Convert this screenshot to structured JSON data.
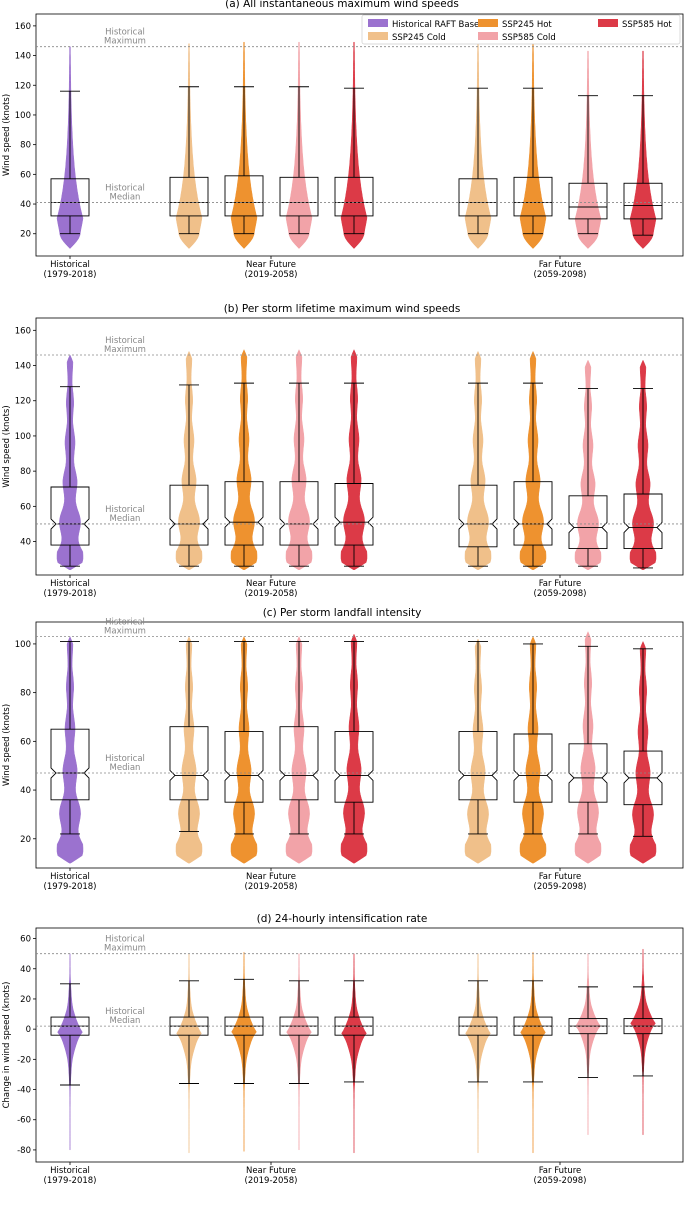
{
  "legend": [
    {
      "name": "Historical RAFT Baseline",
      "color": "#9b72cf"
    },
    {
      "name": "SSP245 Cold",
      "color": "#f0c08a"
    },
    {
      "name": "SSP245 Hot",
      "color": "#ee922f"
    },
    {
      "name": "SSP585 Cold",
      "color": "#f2a3a8"
    },
    {
      "name": "SSP585 Hot",
      "color": "#dc3a47"
    }
  ],
  "groups": [
    {
      "label": "Historical",
      "sub": "(1979-2018)"
    },
    {
      "label": "Near Future",
      "sub": "(2019-2058)"
    },
    {
      "label": "Far Future",
      "sub": "(2059-2098)"
    }
  ],
  "ref_labels": {
    "max": [
      "Historical",
      "Maximum"
    ],
    "median": [
      "Historical",
      "Median"
    ]
  },
  "chart_data": [
    {
      "type": "violin+box",
      "title": "(a) All instantaneous maximum wind speeds",
      "ylabel": "Wind speed (knots)",
      "ylim": [
        5,
        168
      ],
      "yticks": [
        20,
        40,
        60,
        80,
        100,
        120,
        140,
        160
      ],
      "hist_max": 146,
      "hist_median": 41,
      "shape": "skew",
      "notch": false,
      "series": [
        {
          "name": "Historical RAFT Baseline",
          "q1": 32,
          "median": 41,
          "q3": 57,
          "whislo": 20,
          "whishi": 116,
          "min": 10,
          "max": 146
        },
        {
          "name": "SSP245 Cold",
          "q1": 32,
          "median": 41,
          "q3": 58,
          "whislo": 20,
          "whishi": 119,
          "min": 10,
          "max": 148
        },
        {
          "name": "SSP245 Hot",
          "q1": 32,
          "median": 41,
          "q3": 59,
          "whislo": 20,
          "whishi": 119,
          "min": 10,
          "max": 149
        },
        {
          "name": "SSP585 Cold",
          "q1": 32,
          "median": 41,
          "q3": 58,
          "whislo": 20,
          "whishi": 119,
          "min": 10,
          "max": 149
        },
        {
          "name": "SSP585 Hot",
          "q1": 32,
          "median": 41,
          "q3": 58,
          "whislo": 20,
          "whishi": 118,
          "min": 10,
          "max": 149
        },
        {
          "name": "SSP245 Cold",
          "q1": 32,
          "median": 41,
          "q3": 57,
          "whislo": 20,
          "whishi": 118,
          "min": 10,
          "max": 148
        },
        {
          "name": "SSP245 Hot",
          "q1": 32,
          "median": 41,
          "q3": 58,
          "whislo": 20,
          "whishi": 118,
          "min": 10,
          "max": 148
        },
        {
          "name": "SSP585 Cold",
          "q1": 30,
          "median": 38,
          "q3": 54,
          "whislo": 20,
          "whishi": 113,
          "min": 10,
          "max": 143
        },
        {
          "name": "SSP585 Hot",
          "q1": 30,
          "median": 39,
          "q3": 54,
          "whislo": 19,
          "whishi": 113,
          "min": 10,
          "max": 143
        }
      ]
    },
    {
      "type": "violin+box",
      "title": "(b) Per storm lifetime maximum wind speeds",
      "ylabel": "Wind speed (knots)",
      "ylim": [
        21,
        167
      ],
      "yticks": [
        20,
        40,
        60,
        80,
        100,
        120,
        140,
        160
      ],
      "hist_max": 146,
      "hist_median": 50,
      "shape": "wavy",
      "notch": true,
      "series": [
        {
          "name": "Historical RAFT Baseline",
          "q1": 38,
          "median": 50,
          "q3": 71,
          "whislo": 26,
          "whishi": 128,
          "min": 24,
          "max": 146
        },
        {
          "name": "SSP245 Cold",
          "q1": 38,
          "median": 50,
          "q3": 72,
          "whislo": 26,
          "whishi": 129,
          "min": 24,
          "max": 148
        },
        {
          "name": "SSP245 Hot",
          "q1": 38,
          "median": 51,
          "q3": 74,
          "whislo": 26,
          "whishi": 130,
          "min": 24,
          "max": 149
        },
        {
          "name": "SSP585 Cold",
          "q1": 38,
          "median": 50,
          "q3": 74,
          "whislo": 26,
          "whishi": 130,
          "min": 24,
          "max": 149
        },
        {
          "name": "SSP585 Hot",
          "q1": 38,
          "median": 51,
          "q3": 73,
          "whislo": 26,
          "whishi": 130,
          "min": 24,
          "max": 149
        },
        {
          "name": "SSP245 Cold",
          "q1": 37,
          "median": 50,
          "q3": 72,
          "whislo": 26,
          "whishi": 130,
          "min": 24,
          "max": 148
        },
        {
          "name": "SSP245 Hot",
          "q1": 38,
          "median": 50,
          "q3": 74,
          "whislo": 26,
          "whishi": 130,
          "min": 24,
          "max": 148
        },
        {
          "name": "SSP585 Cold",
          "q1": 36,
          "median": 48,
          "q3": 66,
          "whislo": 26,
          "whishi": 127,
          "min": 24,
          "max": 143
        },
        {
          "name": "SSP585 Hot",
          "q1": 36,
          "median": 48,
          "q3": 67,
          "whislo": 25,
          "whishi": 127,
          "min": 24,
          "max": 143
        }
      ]
    },
    {
      "type": "violin+box",
      "title": "(c) Per storm landfall intensity",
      "ylabel": "Wind speed (knots)",
      "ylim": [
        8,
        109
      ],
      "yticks": [
        20,
        40,
        60,
        80,
        100
      ],
      "hist_max": 103,
      "hist_median": 47,
      "shape": "wavy",
      "notch": true,
      "series": [
        {
          "name": "Historical RAFT Baseline",
          "q1": 36,
          "median": 47,
          "q3": 65,
          "whislo": 22,
          "whishi": 101,
          "min": 10,
          "max": 103
        },
        {
          "name": "SSP245 Cold",
          "q1": 36,
          "median": 46,
          "q3": 66,
          "whislo": 23,
          "whishi": 101,
          "min": 10,
          "max": 103
        },
        {
          "name": "SSP245 Hot",
          "q1": 35,
          "median": 46,
          "q3": 64,
          "whislo": 22,
          "whishi": 101,
          "min": 10,
          "max": 103
        },
        {
          "name": "SSP585 Cold",
          "q1": 36,
          "median": 46,
          "q3": 66,
          "whislo": 22,
          "whishi": 101,
          "min": 10,
          "max": 103
        },
        {
          "name": "SSP585 Hot",
          "q1": 35,
          "median": 46,
          "q3": 64,
          "whislo": 22,
          "whishi": 101,
          "min": 10,
          "max": 104
        },
        {
          "name": "SSP245 Cold",
          "q1": 36,
          "median": 46,
          "q3": 64,
          "whislo": 22,
          "whishi": 101,
          "min": 10,
          "max": 102
        },
        {
          "name": "SSP245 Hot",
          "q1": 35,
          "median": 46,
          "q3": 63,
          "whislo": 22,
          "whishi": 100,
          "min": 10,
          "max": 103
        },
        {
          "name": "SSP585 Cold",
          "q1": 35,
          "median": 45,
          "q3": 59,
          "whislo": 22,
          "whishi": 99,
          "min": 10,
          "max": 105
        },
        {
          "name": "SSP585 Hot",
          "q1": 34,
          "median": 45,
          "q3": 56,
          "whislo": 21,
          "whishi": 98,
          "min": 10,
          "max": 101
        }
      ]
    },
    {
      "type": "violin+box",
      "title": "(d) 24-hourly intensification rate",
      "ylabel": "Change in wind speed (knots)",
      "ylim": [
        -88,
        67
      ],
      "yticks": [
        -80,
        -60,
        -40,
        -20,
        0,
        20,
        40,
        60
      ],
      "hist_max": 50,
      "hist_median": 2,
      "shape": "centered",
      "notch": false,
      "series": [
        {
          "name": "Historical RAFT Baseline",
          "q1": -4,
          "median": 2,
          "q3": 8,
          "whislo": -37,
          "whishi": 30,
          "min": -80,
          "max": 50
        },
        {
          "name": "SSP245 Cold",
          "q1": -4,
          "median": 2,
          "q3": 8,
          "whislo": -36,
          "whishi": 32,
          "min": -82,
          "max": 50
        },
        {
          "name": "SSP245 Hot",
          "q1": -4,
          "median": 2,
          "q3": 8,
          "whislo": -36,
          "whishi": 33,
          "min": -81,
          "max": 51
        },
        {
          "name": "SSP585 Cold",
          "q1": -4,
          "median": 2,
          "q3": 8,
          "whislo": -36,
          "whishi": 32,
          "min": -80,
          "max": 50
        },
        {
          "name": "SSP585 Hot",
          "q1": -4,
          "median": 2,
          "q3": 8,
          "whislo": -35,
          "whishi": 32,
          "min": -82,
          "max": 50
        },
        {
          "name": "SSP245 Cold",
          "q1": -4,
          "median": 2,
          "q3": 8,
          "whislo": -35,
          "whishi": 32,
          "min": -82,
          "max": 50
        },
        {
          "name": "SSP245 Hot",
          "q1": -4,
          "median": 2,
          "q3": 8,
          "whislo": -35,
          "whishi": 32,
          "min": -82,
          "max": 51
        },
        {
          "name": "SSP585 Cold",
          "q1": -3,
          "median": 2,
          "q3": 7,
          "whislo": -32,
          "whishi": 28,
          "min": -70,
          "max": 50
        },
        {
          "name": "SSP585 Hot",
          "q1": -3,
          "median": 2,
          "q3": 7,
          "whislo": -31,
          "whishi": 28,
          "min": -70,
          "max": 53
        }
      ]
    }
  ]
}
